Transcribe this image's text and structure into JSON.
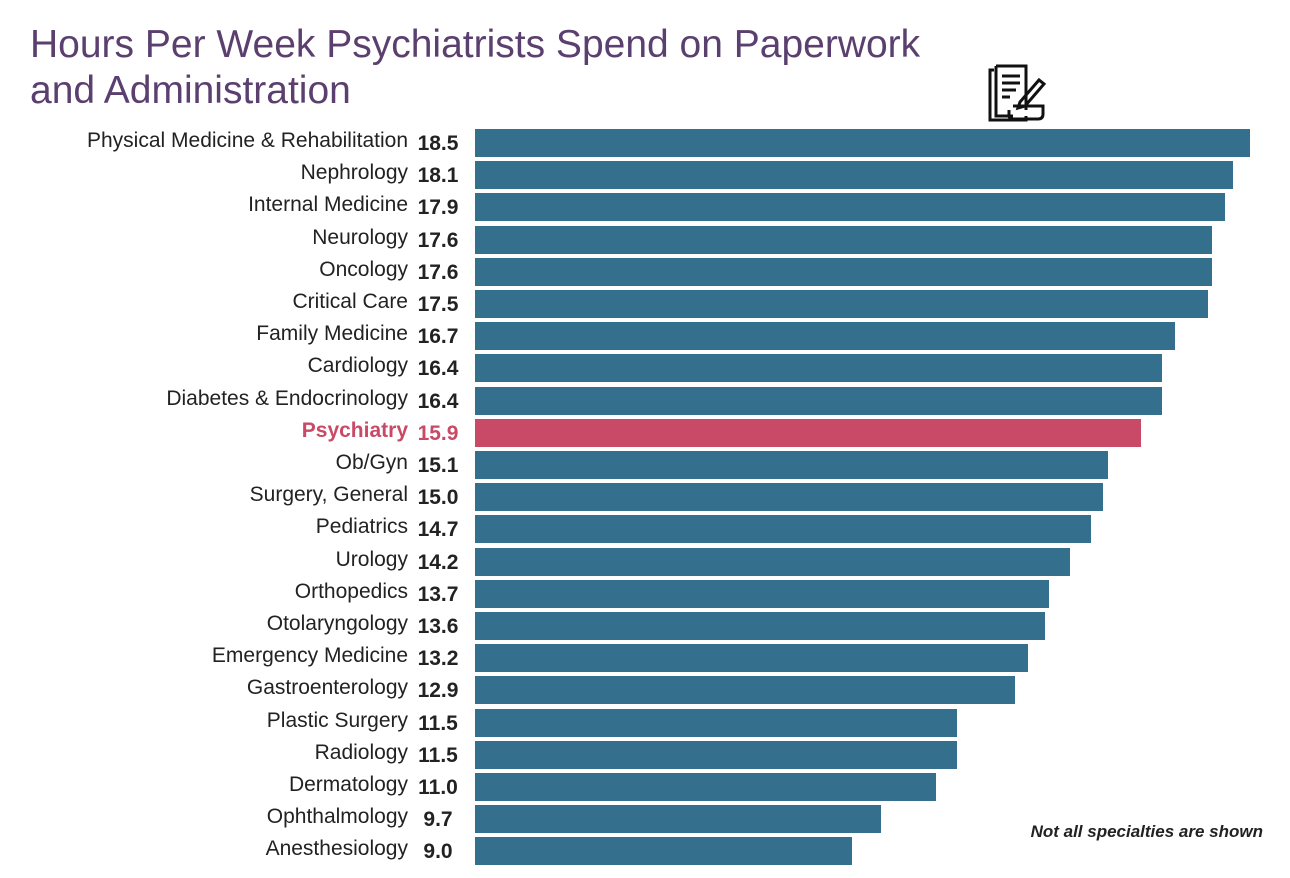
{
  "chart_data": {
    "type": "bar",
    "orientation": "horizontal",
    "title": "Hours Per Week Psychiatrists Spend on Paperwork and Administration",
    "note": "Not all specialties are shown",
    "categories": [
      "Physical Medicine & Rehabilitation",
      "Nephrology",
      "Internal Medicine",
      "Neurology",
      "Oncology",
      "Critical Care",
      "Family Medicine",
      "Cardiology",
      "Diabetes & Endocrinology",
      "Psychiatry",
      "Ob/Gyn",
      "Surgery, General",
      "Pediatrics",
      "Urology",
      "Orthopedics",
      "Otolaryngology",
      "Emergency Medicine",
      "Gastroenterology",
      "Plastic Surgery",
      "Radiology",
      "Dermatology",
      "Ophthalmology",
      "Anesthesiology"
    ],
    "values": [
      18.5,
      18.1,
      17.9,
      17.6,
      17.6,
      17.5,
      16.7,
      16.4,
      16.4,
      15.9,
      15.1,
      15.0,
      14.7,
      14.2,
      13.7,
      13.6,
      13.2,
      12.9,
      11.5,
      11.5,
      11.0,
      9.7,
      9.0
    ],
    "value_labels": [
      "18.5",
      "18.1",
      "17.9",
      "17.6",
      "17.6",
      "17.5",
      "16.7",
      "16.4",
      "16.4",
      "15.9",
      "15.1",
      "15.0",
      "14.7",
      "14.2",
      "13.7",
      "13.6",
      "13.2",
      "12.9",
      "11.5",
      "11.5",
      "11.0",
      "9.7",
      "9.0"
    ],
    "highlight": "Psychiatry",
    "xlim": [
      0,
      18.5
    ],
    "grid": false,
    "colors": {
      "bar": "#346f8e",
      "highlight": "#c94a66",
      "title": "#5b406f",
      "text": "#222222"
    }
  },
  "icon": "paperwork-document-pencil-icon"
}
